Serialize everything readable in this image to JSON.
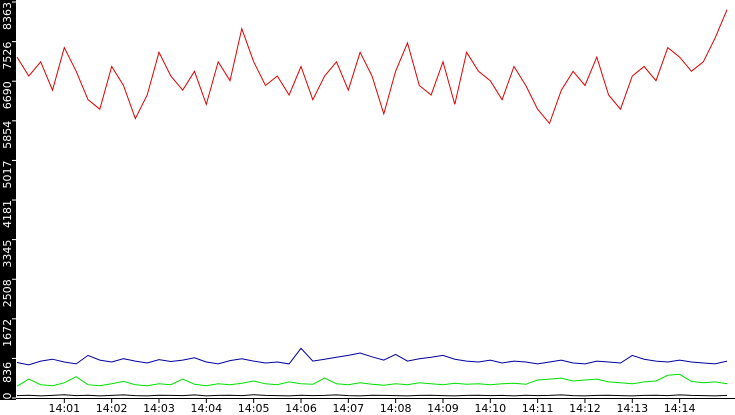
{
  "chart_data": {
    "type": "line",
    "x": [
      0,
      0.25,
      0.5,
      0.75,
      1,
      1.25,
      1.5,
      1.75,
      2,
      2.25,
      2.5,
      2.75,
      3,
      3.25,
      3.5,
      3.75,
      4,
      4.25,
      4.5,
      4.75,
      5,
      5.25,
      5.5,
      5.75,
      6,
      6.25,
      6.5,
      6.75,
      7,
      7.25,
      7.5,
      7.75,
      8,
      8.25,
      8.5,
      8.75,
      9,
      9.25,
      9.5,
      9.75,
      10,
      10.25,
      10.5,
      10.75,
      11,
      11.25,
      11.5,
      11.75,
      12,
      12.25,
      12.5,
      12.75,
      13,
      13.25,
      13.5,
      13.75,
      14,
      14.25,
      14.5,
      14.75,
      15
    ],
    "series": [
      {
        "color": "#e00000",
        "values": [
          7200,
          6800,
          7100,
          6500,
          7400,
          6900,
          6300,
          6100,
          7000,
          6600,
          5900,
          6400,
          7300,
          6800,
          6500,
          6900,
          6200,
          7100,
          6700,
          7800,
          7100,
          6600,
          6800,
          6400,
          7000,
          6300,
          6800,
          7100,
          6500,
          7300,
          6800,
          6000,
          6900,
          7500,
          6600,
          6400,
          7100,
          6200,
          7300,
          6900,
          6700,
          6300,
          7000,
          6600,
          6100,
          5800,
          6500,
          6900,
          6600,
          7200,
          6400,
          6100,
          6800,
          7000,
          6700,
          7400,
          7200,
          6900,
          7100,
          7600,
          8200
        ]
      },
      {
        "color": "#0000a0",
        "values": [
          750,
          700,
          780,
          820,
          760,
          720,
          900,
          800,
          760,
          830,
          780,
          740,
          810,
          770,
          800,
          850,
          760,
          720,
          790,
          830,
          780,
          740,
          760,
          720,
          1050,
          780,
          820,
          860,
          900,
          950,
          870,
          800,
          920,
          780,
          830,
          860,
          900,
          820,
          780,
          760,
          800,
          740,
          780,
          760,
          720,
          760,
          800,
          740,
          720,
          780,
          760,
          740,
          900,
          820,
          780,
          760,
          800,
          760,
          740,
          720,
          780
        ]
      },
      {
        "color": "#00e000",
        "values": [
          250,
          400,
          280,
          260,
          320,
          450,
          280,
          260,
          300,
          350,
          280,
          260,
          300,
          280,
          400,
          290,
          260,
          300,
          280,
          310,
          360,
          300,
          280,
          340,
          300,
          290,
          420,
          300,
          280,
          320,
          290,
          270,
          300,
          280,
          320,
          300,
          280,
          310,
          290,
          300,
          280,
          300,
          310,
          290,
          380,
          400,
          420,
          360,
          380,
          400,
          340,
          320,
          300,
          340,
          360,
          480,
          500,
          350,
          320,
          340,
          300
        ]
      },
      {
        "color": "#000000",
        "values": [
          50,
          60,
          45,
          55,
          70,
          50,
          60,
          45,
          55,
          65,
          50,
          45,
          60,
          55,
          50,
          65,
          45,
          55,
          60,
          50,
          70,
          55,
          50,
          45,
          60,
          50,
          55,
          65,
          50,
          45,
          60,
          55,
          50,
          45,
          55,
          60,
          50,
          45,
          55,
          60,
          50,
          55,
          45,
          60,
          50,
          55,
          65,
          50,
          45,
          55,
          60,
          50,
          45,
          55,
          60,
          50,
          65,
          55,
          50,
          45,
          55
        ]
      }
    ],
    "xlim": [
      0,
      15.17
    ],
    "xticks": [
      {
        "value": 1,
        "label": "14:01"
      },
      {
        "value": 2,
        "label": "14:02"
      },
      {
        "value": 3,
        "label": "14:03"
      },
      {
        "value": 4,
        "label": "14:04"
      },
      {
        "value": 5,
        "label": "14:05"
      },
      {
        "value": 6,
        "label": "14:06"
      },
      {
        "value": 7,
        "label": "14:07"
      },
      {
        "value": 8,
        "label": "14:08"
      },
      {
        "value": 9,
        "label": "14:09"
      },
      {
        "value": 10,
        "label": "14:10"
      },
      {
        "value": 11,
        "label": "14:11"
      },
      {
        "value": 12,
        "label": "14:12"
      },
      {
        "value": 13,
        "label": "14:13"
      },
      {
        "value": 14,
        "label": "14:14"
      }
    ],
    "ylim": [
      0,
      8363
    ],
    "yticks": [
      0,
      836,
      1672,
      2508,
      3345,
      4181,
      5017,
      5854,
      6690,
      7526,
      8363
    ]
  }
}
